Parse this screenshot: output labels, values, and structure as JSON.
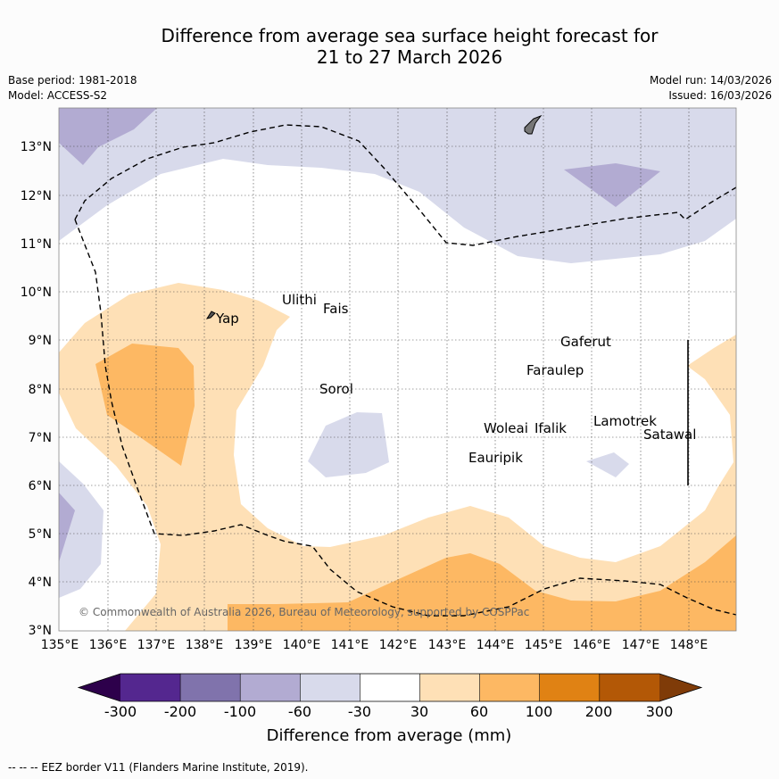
{
  "title_line1": "Difference from average sea surface height forecast for",
  "title_line2": "21 to 27 March 2026",
  "base_period": "Base period: 1981-2018",
  "model": "Model: ACCESS-S2",
  "model_run": "Model run: 14/03/2026",
  "issued": "Issued: 16/03/2026",
  "copyright": "© Commonwealth of Australia 2026, Bureau of Meteorology, supported by COSPPac",
  "footer": "--  --  -- EEZ border V11 (Flanders Marine Institute, 2019).",
  "map": {
    "lon_labels": [
      "135°E",
      "136°E",
      "137°E",
      "138°E",
      "139°E",
      "140°E",
      "141°E",
      "142°E",
      "143°E",
      "144°E",
      "145°E",
      "146°E",
      "147°E",
      "148°E"
    ],
    "lat_labels": [
      "3°N",
      "4°N",
      "5°N",
      "6°N",
      "7°N",
      "8°N",
      "9°N",
      "10°N",
      "11°N",
      "12°N",
      "13°N"
    ],
    "places": [
      {
        "name": "Yap"
      },
      {
        "name": "Ulithi"
      },
      {
        "name": "Fais"
      },
      {
        "name": "Sorol"
      },
      {
        "name": "Gaferut"
      },
      {
        "name": "Faraulep"
      },
      {
        "name": "Woleai"
      },
      {
        "name": "Ifalik"
      },
      {
        "name": "Eauripik"
      },
      {
        "name": "Lamotrek"
      },
      {
        "name": "Satawal"
      }
    ]
  },
  "colorbar": {
    "label": "Difference from average (mm)",
    "ticks": [
      "-300",
      "-200",
      "-100",
      "-60",
      "-30",
      "30",
      "60",
      "100",
      "200",
      "300"
    ],
    "colors": [
      "#54278f",
      "#8073ac",
      "#b2abd2",
      "#d8daeb",
      "#ffffff",
      "#fee0b6",
      "#fdb863",
      "#e08214",
      "#b35806"
    ],
    "low_color": "#2d004b",
    "high_color": "#7f3b08"
  }
}
